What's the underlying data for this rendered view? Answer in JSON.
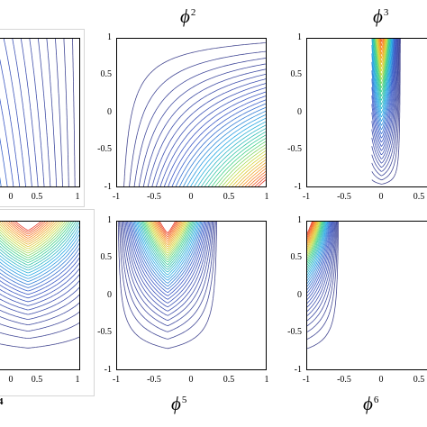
{
  "panels": [
    {
      "id": "p1",
      "label": "",
      "fn": "phi1"
    },
    {
      "id": "p2",
      "label": "ϕ",
      "sup": "2",
      "fn": "phi2"
    },
    {
      "id": "p3",
      "label": "ϕ",
      "sup": "3",
      "fn": "phi3"
    },
    {
      "id": "p4",
      "label": "",
      "fn": "phi4"
    },
    {
      "id": "p5",
      "label": "ϕ",
      "sup": "5",
      "fn": "phi5"
    },
    {
      "id": "p6",
      "label": "ϕ",
      "sup": "6",
      "fn": "phi6"
    }
  ],
  "fragment_label": "4",
  "axis": {
    "x_ticks": [
      "-1",
      "-0.5",
      "0",
      "0.5",
      "1"
    ],
    "y_ticks": [
      "1",
      "0.5",
      "0",
      "-0.5",
      "-1"
    ],
    "p1_x_ticks": [
      "0",
      "0.5",
      "1"
    ]
  },
  "colors": {
    "contour_low": "#3f3f8f",
    "frame": "#000000"
  }
}
